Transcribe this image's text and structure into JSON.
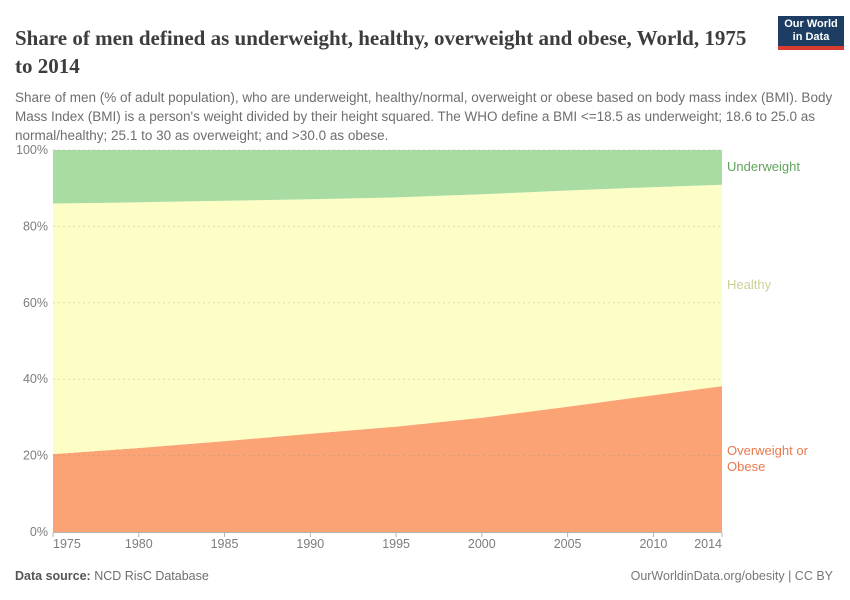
{
  "header": {
    "title": "Share of men defined as underweight, healthy, overweight and obese, World, 1975 to 2014",
    "subtitle": "Share of men (% of adult population), who are underweight, healthy/normal, overweight or obese based on body mass index (BMI). Body Mass Index (BMI) is a person's weight divided by their height squared. The WHO define a BMI <=18.5 as underweight; 18.6 to 25.0 as normal/healthy; 25.1 to 30 as overweight; and >30.0 as obese.",
    "logo": {
      "line1": "Our World",
      "line2": "in Data",
      "bg_color": "#1d3d63",
      "accent_color": "#d93d32"
    }
  },
  "chart_data": {
    "type": "area",
    "stacked": true,
    "title": "Share of men defined as underweight, healthy, overweight and obese, World, 1975 to 2014",
    "x": [
      1975,
      1980,
      1985,
      1990,
      1995,
      2000,
      2005,
      2010,
      2014
    ],
    "series": [
      {
        "name": "Overweight or Obese",
        "values": [
          20.4,
          22.0,
          23.8,
          25.7,
          27.6,
          29.9,
          32.8,
          35.8,
          38.2
        ],
        "fill": "#fba375",
        "label_color": "#e8794e"
      },
      {
        "name": "Healthy",
        "values": [
          65.6,
          64.3,
          62.9,
          61.4,
          60.0,
          58.5,
          56.6,
          54.5,
          52.7
        ],
        "fill": "#fdfdc6",
        "label_color": "#cfcf96"
      },
      {
        "name": "Underweight",
        "values": [
          14.0,
          13.7,
          13.3,
          12.9,
          12.4,
          11.6,
          10.6,
          9.7,
          9.1
        ],
        "fill": "#a9dca2",
        "label_color": "#5fa45c"
      }
    ],
    "xlabel": "",
    "ylabel": "",
    "ylim": [
      0,
      100
    ],
    "y_ticks": [
      0,
      20,
      40,
      60,
      80,
      100
    ],
    "y_tick_suffix": "%",
    "x_ticks": [
      1975,
      1980,
      1985,
      1990,
      1995,
      2000,
      2005,
      2010,
      2014
    ],
    "grid": "horizontal-dashed",
    "legend_position": "right-edge-labels",
    "axis_color": "#b3b3b3",
    "tick_label_color": "#7d7d7d"
  },
  "footer": {
    "data_source_label": "Data source:",
    "data_source_value": " NCD RisC Database",
    "credit": "OurWorldinData.org/obesity | CC BY"
  }
}
